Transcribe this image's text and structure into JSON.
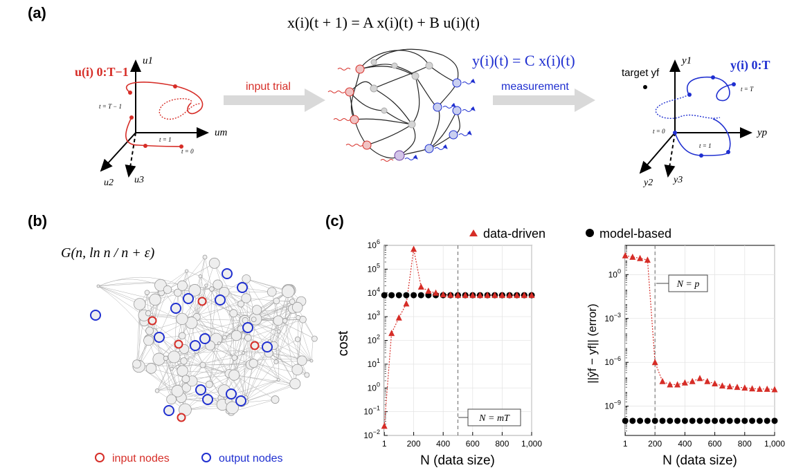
{
  "panel_a": {
    "label": "(a)",
    "equation": "x(i)(t + 1) = A x(i)(t) + B u(i)(t)",
    "measurement_equation": "y(i)(t) = C x(i)(t)",
    "input_label": "u(i) 0:T−1",
    "output_label": "y(i) 0:T",
    "arrow1_label": "input trial",
    "arrow2_label": "measurement",
    "target_label": "target yf",
    "left_axes": {
      "u1": "u1",
      "um": "um",
      "u2": "u2",
      "u3": "u3"
    },
    "left_ticks": {
      "tT1": "t = T − 1",
      "t1": "t = 1",
      "t0": "t = 0"
    },
    "right_axes": {
      "y1": "y1",
      "yp": "yp",
      "y2": "y2",
      "y3": "y3"
    },
    "right_ticks": {
      "tT": "t = T",
      "t0": "t = 0",
      "t1": "t = 1"
    },
    "colors": {
      "input": "#d62d27",
      "output": "#1f2fd0",
      "arrow": "#d9d9d9"
    }
  },
  "panel_b": {
    "label": "(b)",
    "formula": "G(n, ln n / n + ε)",
    "legend": [
      {
        "label": "input nodes",
        "color": "#d62d27"
      },
      {
        "label": "output nodes",
        "color": "#1f2fd0"
      }
    ]
  },
  "panel_c": {
    "label": "(c)",
    "legend": [
      {
        "label": "data-driven",
        "color": "#d62d27",
        "marker": "triangle"
      },
      {
        "label": "model-based",
        "color": "#000000",
        "marker": "circle"
      }
    ]
  },
  "chart_data": [
    {
      "type": "scatter",
      "ylabel": "cost",
      "xlabel": "N (data size)",
      "yscale": "log",
      "ylim": [
        0.01,
        1000000
      ],
      "xlim": [
        0,
        1000
      ],
      "x_ticks": [
        "1",
        "200",
        "400",
        "600",
        "800",
        "1,000"
      ],
      "y_ticks": [
        "10−2",
        "10−1",
        "100",
        "101",
        "102",
        "103",
        "104",
        "105",
        "106"
      ],
      "vline": {
        "x": 500,
        "label": "N = mT"
      },
      "series": [
        {
          "name": "data-driven",
          "x": [
            1,
            50,
            100,
            150,
            200,
            250,
            300,
            350,
            400,
            450,
            500,
            550,
            600,
            650,
            700,
            750,
            800,
            850,
            900,
            950,
            1000
          ],
          "y": [
            0.025,
            200,
            900,
            3500,
            700000,
            18000,
            12000,
            10000,
            8500,
            8200,
            8000,
            8000,
            8000,
            8000,
            8000,
            8000,
            8000,
            8000,
            8000,
            8000,
            8000
          ]
        },
        {
          "name": "model-based",
          "x": [
            1,
            50,
            100,
            150,
            200,
            250,
            300,
            350,
            400,
            450,
            500,
            550,
            600,
            650,
            700,
            750,
            800,
            850,
            900,
            950,
            1000
          ],
          "y": [
            8000,
            8000,
            8000,
            8000,
            8000,
            8000,
            8000,
            8000,
            8000,
            8000,
            8000,
            8000,
            8000,
            8000,
            8000,
            8000,
            8000,
            8000,
            8000,
            8000,
            8000
          ]
        }
      ]
    },
    {
      "type": "scatter",
      "ylabel": "||ŷf − yf|| (error)",
      "xlabel": "N (data size)",
      "yscale": "log",
      "ylim": [
        1e-11,
        100
      ],
      "xlim": [
        0,
        1000
      ],
      "x_ticks": [
        "1",
        "200",
        "400",
        "600",
        "800",
        "1,000"
      ],
      "y_ticks": [
        "10−9",
        "10−6",
        "10−3",
        "100"
      ],
      "vline": {
        "x": 200,
        "label": "N = p"
      },
      "series": [
        {
          "name": "data-driven",
          "x": [
            1,
            50,
            100,
            150,
            200,
            250,
            300,
            350,
            400,
            450,
            500,
            550,
            600,
            650,
            700,
            750,
            800,
            850,
            900,
            950,
            1000
          ],
          "y": [
            20,
            16,
            13,
            10,
            1e-06,
            5e-08,
            3e-08,
            3e-08,
            4e-08,
            5e-08,
            8e-08,
            5e-08,
            3.5e-08,
            2.5e-08,
            2.2e-08,
            2e-08,
            1.8e-08,
            1.6e-08,
            1.5e-08,
            1.5e-08,
            1.4e-08
          ]
        },
        {
          "name": "model-based",
          "x": [
            1,
            50,
            100,
            150,
            200,
            250,
            300,
            350,
            400,
            450,
            500,
            550,
            600,
            650,
            700,
            750,
            800,
            850,
            900,
            950,
            1000
          ],
          "y": [
            1e-10,
            1e-10,
            1e-10,
            1e-10,
            1e-10,
            1e-10,
            1e-10,
            1e-10,
            1e-10,
            1e-10,
            1e-10,
            1e-10,
            1e-10,
            1e-10,
            1e-10,
            1e-10,
            1e-10,
            1e-10,
            1e-10,
            1e-10,
            1e-10
          ]
        }
      ]
    }
  ]
}
